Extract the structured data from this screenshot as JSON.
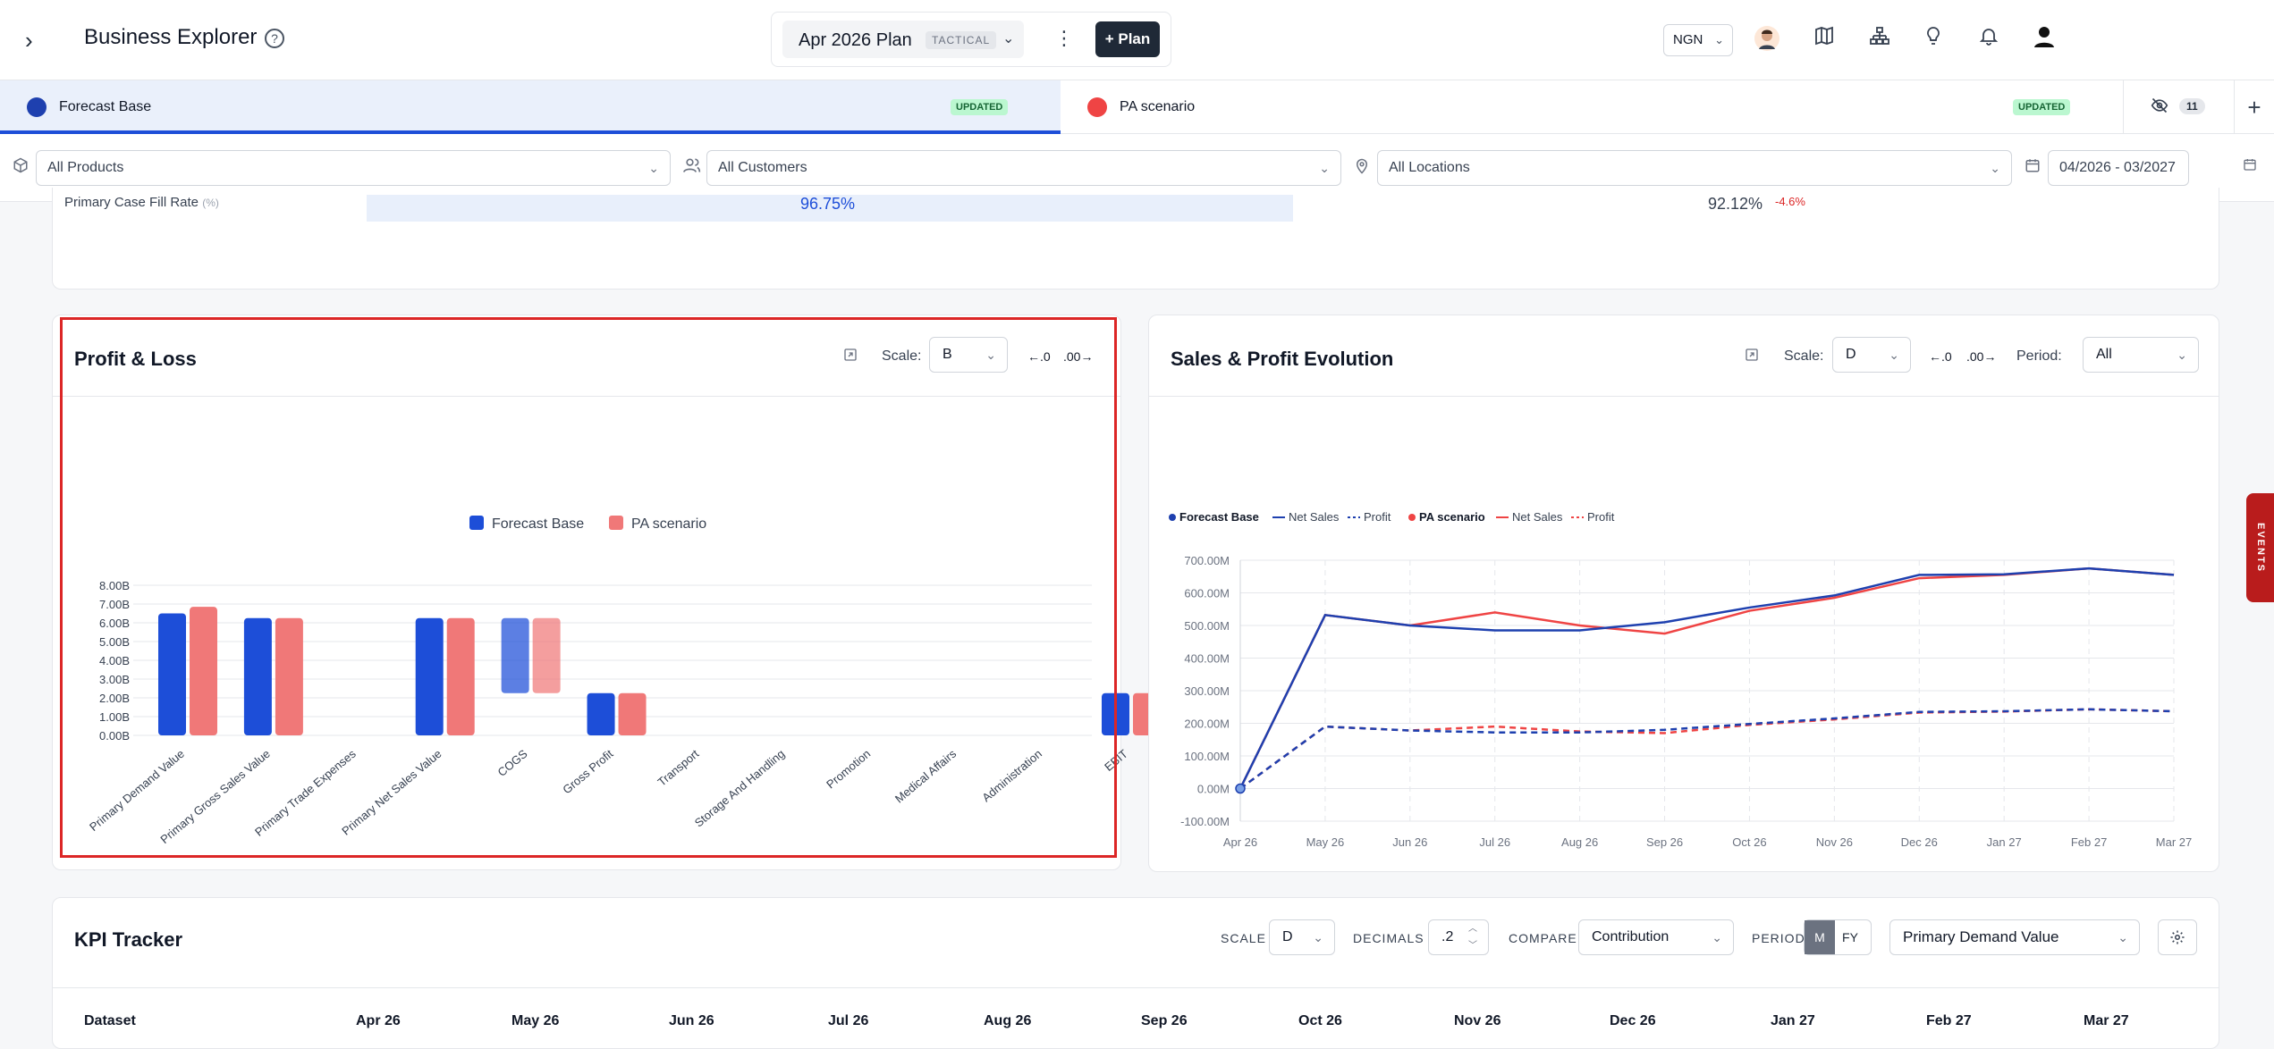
{
  "header": {
    "title": "Business Explorer",
    "help_glyph": "?",
    "plan_name": "Apr 2026 Plan",
    "plan_tag": "TACTICAL",
    "plan_button": "+ Plan",
    "currency": "NGN",
    "icons": [
      "user-avatar-icon",
      "map-icon",
      "hierarchy-icon",
      "lightbulb-icon",
      "bell-icon",
      "account-icon"
    ]
  },
  "tabs": [
    {
      "label": "Forecast Base",
      "badge": "UPDATED",
      "color": "#1e40af"
    },
    {
      "label": "PA scenario",
      "badge": "UPDATED",
      "color": "#ef4444"
    }
  ],
  "hidden_count": "11",
  "filters": {
    "products": "All Products",
    "customers": "All Customers",
    "locations": "All Locations",
    "date_range": "04/2026 - 03/2027"
  },
  "ghost_row": {
    "label": "Primary Case Fill Rate",
    "unit": "(%)",
    "value_a": "96.75%",
    "value_b": "92.12%",
    "delta": "-4.6%"
  },
  "pnl": {
    "title": "Profit & Loss",
    "scale_label": "Scale:",
    "scale_value": "B",
    "dec_less": "←.0",
    "dec_more": ".00→",
    "legend": [
      "Forecast Base",
      "PA scenario"
    ]
  },
  "evolution": {
    "title": "Sales & Profit Evolution",
    "scale_label": "Scale:",
    "scale_value": "D",
    "dec_less": "←.0",
    "dec_more": ".00→",
    "period_label": "Period:",
    "period_value": "All",
    "legend": {
      "base": "Forecast Base",
      "net_sales": "Net Sales",
      "profit": "Profit",
      "scenario": "PA scenario"
    }
  },
  "chart_data": [
    {
      "type": "bar",
      "title": "Profit & Loss",
      "categories": [
        "Primary Demand Value",
        "Primary Gross Sales Value",
        "Primary Trade Expenses",
        "Primary Net Sales Value",
        "COGS",
        "Gross Profit",
        "Transport",
        "Storage And Handling",
        "Promotion",
        "Medical Affairs",
        "Administration",
        "EBIT"
      ],
      "series": [
        {
          "name": "Forecast Base",
          "values": [
            6.5,
            6.25,
            0,
            6.25,
            6.25,
            2.25,
            0,
            0,
            0,
            0,
            0,
            2.25
          ],
          "floor": [
            0,
            0,
            0,
            0,
            2.25,
            0,
            0,
            0,
            0,
            0,
            0,
            0
          ]
        },
        {
          "name": "PA scenario",
          "values": [
            6.85,
            6.25,
            0,
            6.25,
            6.25,
            2.25,
            0,
            0,
            0,
            0,
            0,
            2.25
          ],
          "floor": [
            0,
            0,
            0,
            0,
            2.25,
            0,
            0,
            0,
            0,
            0,
            0,
            0
          ]
        }
      ],
      "yticks": [
        "0.00B",
        "1.00B",
        "2.00B",
        "3.00B",
        "4.00B",
        "5.00B",
        "6.00B",
        "7.00B",
        "8.00B"
      ],
      "ylim": [
        0,
        8
      ],
      "colors": [
        "#1d4ed8",
        "#f07878"
      ]
    },
    {
      "type": "line",
      "title": "Sales & Profit Evolution",
      "x": [
        "Apr 26",
        "May 26",
        "Jun 26",
        "Jul 26",
        "Aug 26",
        "Sep 26",
        "Oct 26",
        "Nov 26",
        "Dec 26",
        "Jan 27",
        "Feb 27",
        "Mar 27"
      ],
      "series": [
        {
          "name": "Forecast Base Net Sales",
          "values": [
            0,
            532,
            500,
            485,
            485,
            510,
            555,
            592,
            655,
            657,
            675,
            655
          ],
          "color": "#1e40af",
          "dash": false
        },
        {
          "name": "Forecast Base Profit",
          "values": [
            0,
            190,
            178,
            172,
            172,
            180,
            198,
            215,
            235,
            237,
            243,
            237
          ],
          "color": "#1e40af",
          "dash": true
        },
        {
          "name": "PA scenario Net Sales",
          "values": [
            0,
            532,
            500,
            540,
            500,
            475,
            545,
            585,
            645,
            655,
            675,
            655
          ],
          "color": "#ef4444",
          "dash": false
        },
        {
          "name": "PA scenario Profit",
          "values": [
            0,
            190,
            178,
            190,
            175,
            170,
            195,
            212,
            233,
            236,
            243,
            237
          ],
          "color": "#ef4444",
          "dash": true
        }
      ],
      "yticks": [
        "-100.00M",
        "0.00M",
        "100.00M",
        "200.00M",
        "300.00M",
        "400.00M",
        "500.00M",
        "600.00M",
        "700.00M"
      ],
      "ylim": [
        -100,
        700
      ]
    }
  ],
  "kpi": {
    "title": "KPI Tracker",
    "scale_label": "SCALE",
    "scale_value": "D",
    "decimals_label": "DECIMALS",
    "decimals_value": ".2",
    "compare_label": "COMPARE",
    "compare_value": "Contribution",
    "period_label": "PERIOD",
    "period_m": "M",
    "period_fy": "FY",
    "metric": "Primary Demand Value",
    "columns": [
      "Dataset",
      "Apr 26",
      "May 26",
      "Jun 26",
      "Jul 26",
      "Aug 26",
      "Sep 26",
      "Oct 26",
      "Nov 26",
      "Dec 26",
      "Jan 27",
      "Feb 27",
      "Mar 27"
    ]
  },
  "events_label": "EVENTS"
}
